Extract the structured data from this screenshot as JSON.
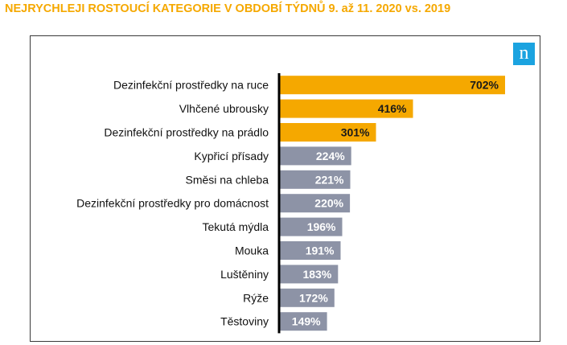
{
  "title": "NEJRYCHLEJI ROSTOUCÍ KATEGORIE V OBDOBÍ TÝDNŮ 9. až 11. 2020 vs. 2019",
  "logo": {
    "text": "n",
    "color": "#1ba3e0"
  },
  "colors": {
    "title": "#f5a800",
    "highlight_bar": "#f5a800",
    "regular_bar": "#8d93a6",
    "highlight_value_text": "#1a1a1a",
    "regular_value_text": "#ffffff",
    "axis": "#000000"
  },
  "chart_data": {
    "type": "bar",
    "orientation": "horizontal",
    "categories": [
      "Dezinfekční prostředky na ruce",
      "Vlhčené ubrousky",
      "Dezinfekční prostředky na prádlo",
      "Kypřicí přísady",
      "Směsi na chleba",
      "Dezinfekční prostředky pro domácnost",
      "Tekutá mýdla",
      "Mouka",
      "Luštěniny",
      "Rýže",
      "Těstoviny"
    ],
    "values": [
      702,
      416,
      301,
      224,
      221,
      220,
      196,
      191,
      183,
      172,
      149
    ],
    "value_labels": [
      "702%",
      "416%",
      "301%",
      "224%",
      "221%",
      "220%",
      "196%",
      "191%",
      "183%",
      "172%",
      "149%"
    ],
    "highlighted": [
      true,
      true,
      true,
      false,
      false,
      false,
      false,
      false,
      false,
      false,
      false
    ],
    "unit": "%",
    "xlim": [
      0,
      702
    ],
    "grid": false,
    "legend": "none"
  }
}
